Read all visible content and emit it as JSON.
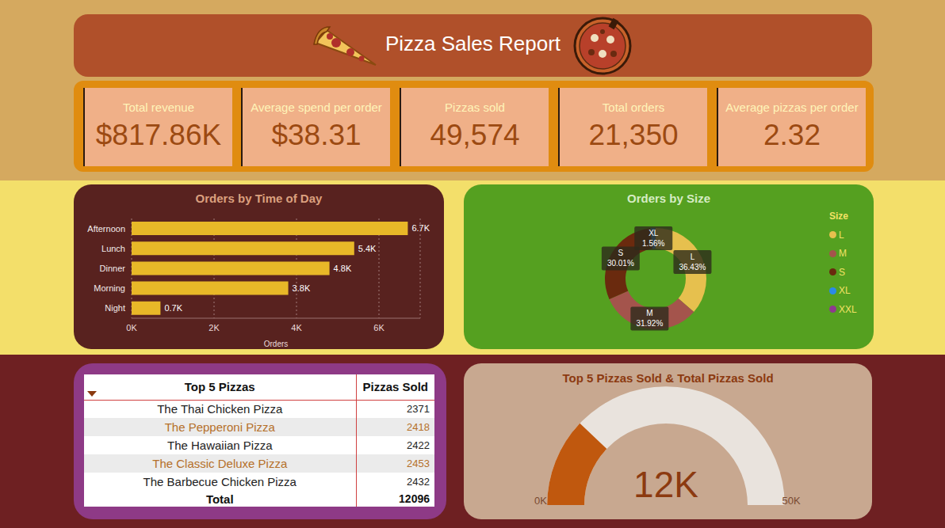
{
  "title": "Pizza Sales Report",
  "kpis": [
    {
      "label": "Total revenue",
      "value": "$817.86K"
    },
    {
      "label": "Average spend per order",
      "value": "$38.31"
    },
    {
      "label": "Pizzas sold",
      "value": "49,574"
    },
    {
      "label": "Total orders",
      "value": "21,350"
    },
    {
      "label": "Average pizzas per order",
      "value": "2.32"
    }
  ],
  "chart_data": [
    {
      "type": "bar",
      "title": "Orders by Time of Day",
      "orientation": "horizontal",
      "categories": [
        "Afternoon",
        "Lunch",
        "Dinner",
        "Morning",
        "Night"
      ],
      "values": [
        6700,
        5400,
        4800,
        3800,
        700
      ],
      "value_labels": [
        "6.7K",
        "5.4K",
        "4.8K",
        "3.8K",
        "0.7K"
      ],
      "data_labels": true,
      "color": "#e8b828",
      "x_label": "Orders",
      "xlim": [
        0,
        7000
      ],
      "xticks": [
        {
          "value": 0,
          "label": "0K"
        },
        {
          "value": 2000,
          "label": "2K"
        },
        {
          "value": 4000,
          "label": "4K"
        },
        {
          "value": 6000,
          "label": "6K"
        }
      ],
      "grid": true
    },
    {
      "type": "donut",
      "title": "Orders by Size",
      "categories": [
        "L",
        "M",
        "S",
        "XL",
        "XXL"
      ],
      "values": [
        36.43,
        31.92,
        30.01,
        1.56,
        0.08
      ],
      "value_labels": [
        "36.43%",
        "31.92%",
        "30.01%",
        "1.56%",
        null
      ],
      "data_labels": true,
      "colors": [
        "#e6c04e",
        "#a4544c",
        "#6a2a0e",
        "#2a8ae8",
        "#8e3a8e"
      ],
      "legend": "right",
      "legend_title": "Size"
    },
    {
      "type": "gauge",
      "title": "Top 5 Pizzas Sold & Total Pizzas Sold",
      "value": 12096,
      "value_label": "12K",
      "ylim": [
        0,
        50000
      ],
      "yticks": [
        {
          "value": 0,
          "label": "0K"
        },
        {
          "value": 50000,
          "label": "50K"
        }
      ],
      "color": "#c0580e"
    }
  ],
  "table": {
    "columns": [
      "Top 5 Pizzas",
      "Pizzas Sold"
    ],
    "rows": [
      [
        "The Thai Chicken Pizza",
        2371
      ],
      [
        "The Pepperoni Pizza",
        2418
      ],
      [
        "The Hawaiian Pizza",
        2422
      ],
      [
        "The Classic Deluxe Pizza",
        2453
      ],
      [
        "The Barbecue Chicken Pizza",
        2432
      ]
    ],
    "total": [
      "Total",
      12096
    ]
  }
}
